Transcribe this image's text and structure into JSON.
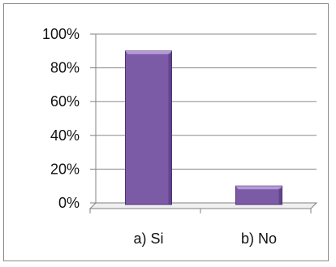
{
  "chart_data": {
    "type": "bar",
    "categories": [
      "a) Si",
      "b) No"
    ],
    "values": [
      0.9,
      0.1
    ],
    "ylim": [
      0,
      1
    ],
    "yticks": [
      {
        "value": 0,
        "label": "0%"
      },
      {
        "value": 0.2,
        "label": "20%"
      },
      {
        "value": 0.4,
        "label": "40%"
      },
      {
        "value": 0.6,
        "label": "60%"
      },
      {
        "value": 0.8,
        "label": "80%"
      },
      {
        "value": 1.0,
        "label": "100%"
      }
    ],
    "grid": true,
    "legend": "none",
    "colors": {
      "bar": "#7b5aa6",
      "bar_top": "#b49bd6",
      "bar_edge": "#4f3477",
      "grid": "#8a8a8a",
      "axis": "#808080"
    }
  }
}
